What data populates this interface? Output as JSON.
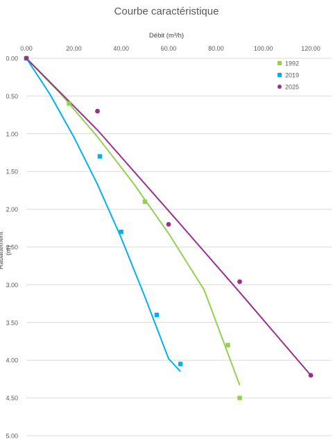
{
  "chart_data": {
    "type": "scatter",
    "title": "Courbe caractéristique",
    "xlabel": "Débit (m³/h)",
    "ylabel": "Rabattement (m)",
    "xlim": [
      0,
      120
    ],
    "ylim": [
      0,
      5
    ],
    "y_reversed": true,
    "x_axis_position": "top",
    "x_ticks": [
      "0.00",
      "20.00",
      "40.00",
      "60.00",
      "80.00",
      "100.00",
      "120.00"
    ],
    "y_ticks": [
      "0.00",
      "0.50",
      "1.00",
      "1.50",
      "2.00",
      "2.50",
      "3.00",
      "3.50",
      "4.00",
      "4.50",
      "5.00"
    ],
    "grid": "horizontal",
    "legend": "top-right",
    "series": [
      {
        "name": "1992",
        "color": "#92D050",
        "marker": "square",
        "points": [
          [
            0,
            0
          ],
          [
            18,
            0.6
          ],
          [
            50,
            1.9
          ],
          [
            85,
            3.8
          ],
          [
            90,
            4.5
          ]
        ],
        "trendline": [
          [
            0,
            0
          ],
          [
            15,
            0.49
          ],
          [
            30,
            1.04
          ],
          [
            45,
            1.65
          ],
          [
            60,
            2.32
          ],
          [
            75,
            3.07
          ],
          [
            90,
            4.33
          ]
        ]
      },
      {
        "name": "2019",
        "color": "#00B0F0",
        "marker": "square",
        "points": [
          [
            0,
            0
          ],
          [
            31,
            1.3
          ],
          [
            40,
            2.3
          ],
          [
            55,
            3.4
          ],
          [
            65,
            4.05
          ]
        ],
        "trendline": [
          [
            0,
            0
          ],
          [
            10,
            0.48
          ],
          [
            20,
            1.04
          ],
          [
            30,
            1.67
          ],
          [
            40,
            2.38
          ],
          [
            50,
            3.16
          ],
          [
            60,
            3.98
          ],
          [
            65,
            4.15
          ]
        ]
      },
      {
        "name": "2025",
        "color": "#9B2E8F",
        "marker": "circle",
        "points": [
          [
            0,
            0
          ],
          [
            30,
            0.7
          ],
          [
            60,
            2.2
          ],
          [
            90,
            2.96
          ],
          [
            120,
            4.2
          ]
        ],
        "trendline": [
          [
            0,
            0
          ],
          [
            30,
            0.95
          ],
          [
            60,
            2.02
          ],
          [
            90,
            3.1
          ],
          [
            120,
            4.2
          ]
        ]
      }
    ]
  }
}
